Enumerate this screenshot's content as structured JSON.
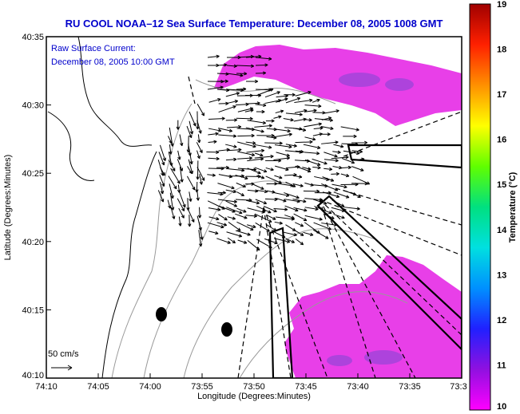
{
  "chart_data": {
    "type": "vector-field",
    "title": "RU COOL  NOAA–12  Sea Surface Temperature:  December 08, 2005 1008 GMT",
    "subtitle": [
      "Raw Surface Current:",
      "December 08, 2005 10:00 GMT"
    ],
    "xlabel": "Longitude (Degrees:Minutes)",
    "ylabel": "Latitude (Degrees:Minutes)",
    "x_ticks": [
      "74:10",
      "74:05",
      "74:00",
      "73:55",
      "73:50",
      "73:45",
      "73:40",
      "73:35",
      "73:3"
    ],
    "y_ticks": [
      "40:35",
      "40:30",
      "40:25",
      "40:20",
      "40:15",
      "40:10"
    ],
    "xlim_min": [
      -74.1667,
      -73.5
    ],
    "ylim_min": [
      40.1667,
      40.5833
    ],
    "scale_label": "50 cm/s",
    "colorbar": {
      "label": "Temperature (°C)",
      "ticks": [
        "19",
        "18",
        "17",
        "16",
        "15",
        "14",
        "13",
        "12",
        "11",
        "10"
      ],
      "range": [
        10,
        19
      ]
    },
    "grid": false,
    "legend": "none"
  },
  "colors": {
    "title": "#0000cc",
    "sst_patch": "#e040e0"
  }
}
